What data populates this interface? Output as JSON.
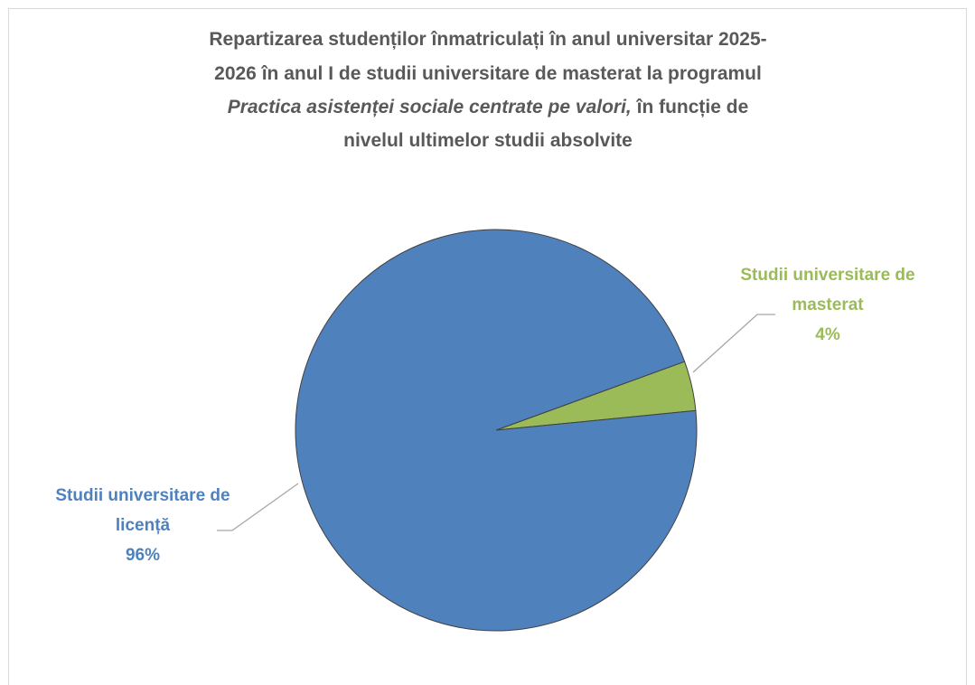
{
  "chart_data": {
    "type": "pie",
    "title": [
      "Repartizarea studenților înmatriculați în anul universitar 2025-",
      "2026 în anul I de studii universitare de masterat la programul",
      "Practica asistenței sociale centrate pe valori,",
      "în funcție de",
      "nivelul ultimelor studii absolvite"
    ],
    "title_italic": [
      false,
      false,
      true,
      false,
      false
    ],
    "categories": [
      "Studii universitare de masterat",
      "Studii universitare de licență"
    ],
    "values": [
      4,
      96
    ],
    "value_labels": [
      "4%",
      "96%"
    ],
    "colors": [
      "#9bbb59",
      "#4f81bd"
    ]
  }
}
